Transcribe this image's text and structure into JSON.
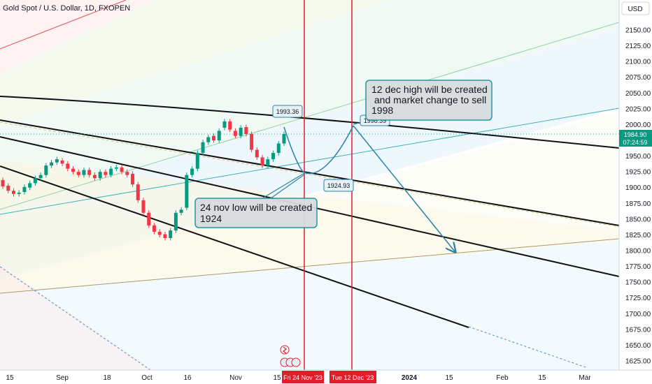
{
  "header": {
    "title": "Gold Spot / U.S. Dollar, 1D, FXOPEN"
  },
  "currency_label": "USD",
  "price_axis": {
    "ticks": [
      2150,
      2125,
      2100,
      2075,
      2050,
      2025,
      2000,
      1975,
      1950,
      1925,
      1900,
      1875,
      1850,
      1825,
      1800,
      1775,
      1750,
      1725,
      1700,
      1675,
      1650,
      1625
    ]
  },
  "time_axis": {
    "labels": [
      "15",
      "Sep",
      "18",
      "Oct",
      "16",
      "Nov",
      "15",
      "2024",
      "15",
      "Feb",
      "15",
      "Mar"
    ],
    "highlight_labels": [
      "Fri 24 Nov '23",
      "Tue 12 Dec '23"
    ]
  },
  "current_price": {
    "value": "1984.90",
    "countdown": "07:24:59"
  },
  "chart_data": {
    "type": "candlestick",
    "title": "Gold Spot / U.S. Dollar, 1D, FXOPEN",
    "ylim": [
      1610,
      2170
    ],
    "price_labels": [
      "1993.36",
      "1924.93",
      "1998.39"
    ],
    "annotations": [
      {
        "text": [
          "12 dec high will be created",
          " and market change to sell",
          "1998"
        ]
      },
      {
        "text": [
          "24 nov low will be created",
          "1924"
        ]
      }
    ],
    "projected_path": [
      {
        "point": "1993.36"
      },
      {
        "date": "24 Nov '23",
        "value": 1924.93
      },
      {
        "date": "12 Dec '23",
        "value": 1998.39
      },
      {
        "value": 1800
      }
    ],
    "candles_approx": [
      {
        "o": 1912,
        "c": 1902
      },
      {
        "o": 1903,
        "c": 1895
      },
      {
        "o": 1895,
        "c": 1890
      },
      {
        "o": 1890,
        "c": 1892
      },
      {
        "o": 1893,
        "c": 1901
      },
      {
        "o": 1900,
        "c": 1907
      },
      {
        "o": 1907,
        "c": 1915
      },
      {
        "o": 1915,
        "c": 1920
      },
      {
        "o": 1920,
        "c": 1935
      },
      {
        "o": 1935,
        "c": 1940
      },
      {
        "o": 1940,
        "c": 1945
      },
      {
        "o": 1943,
        "c": 1938
      },
      {
        "o": 1938,
        "c": 1930
      },
      {
        "o": 1930,
        "c": 1925
      },
      {
        "o": 1925,
        "c": 1920
      },
      {
        "o": 1920,
        "c": 1928
      },
      {
        "o": 1928,
        "c": 1920
      },
      {
        "o": 1920,
        "c": 1915
      },
      {
        "o": 1915,
        "c": 1925
      },
      {
        "o": 1925,
        "c": 1920
      },
      {
        "o": 1920,
        "c": 1930
      },
      {
        "o": 1930,
        "c": 1932
      },
      {
        "o": 1932,
        "c": 1925
      },
      {
        "o": 1925,
        "c": 1920
      },
      {
        "o": 1922,
        "c": 1905
      },
      {
        "o": 1905,
        "c": 1880
      },
      {
        "o": 1880,
        "c": 1860
      },
      {
        "o": 1860,
        "c": 1840
      },
      {
        "o": 1840,
        "c": 1830
      },
      {
        "o": 1830,
        "c": 1825
      },
      {
        "o": 1826,
        "c": 1820
      },
      {
        "o": 1820,
        "c": 1832
      },
      {
        "o": 1832,
        "c": 1860
      },
      {
        "o": 1860,
        "c": 1865
      },
      {
        "o": 1868,
        "c": 1920
      },
      {
        "o": 1920,
        "c": 1930
      },
      {
        "o": 1930,
        "c": 1955
      },
      {
        "o": 1955,
        "c": 1972
      },
      {
        "o": 1972,
        "c": 1980
      },
      {
        "o": 1982,
        "c": 1975
      },
      {
        "o": 1975,
        "c": 1990
      },
      {
        "o": 1995,
        "c": 2005
      },
      {
        "o": 2005,
        "c": 1992
      },
      {
        "o": 1990,
        "c": 1982
      },
      {
        "o": 1982,
        "c": 1995
      },
      {
        "o": 1996,
        "c": 1985
      },
      {
        "o": 1985,
        "c": 1960
      },
      {
        "o": 1960,
        "c": 1948
      },
      {
        "o": 1948,
        "c": 1935
      },
      {
        "o": 1935,
        "c": 1945
      },
      {
        "o": 1945,
        "c": 1955
      },
      {
        "o": 1955,
        "c": 1970
      },
      {
        "o": 1970,
        "c": 1985
      }
    ]
  },
  "colors": {
    "up": "#089981",
    "down": "#f23645",
    "vline": "#e11d2a",
    "note_border": "#1f8f9f",
    "note_fill": "#d9dcdf"
  }
}
